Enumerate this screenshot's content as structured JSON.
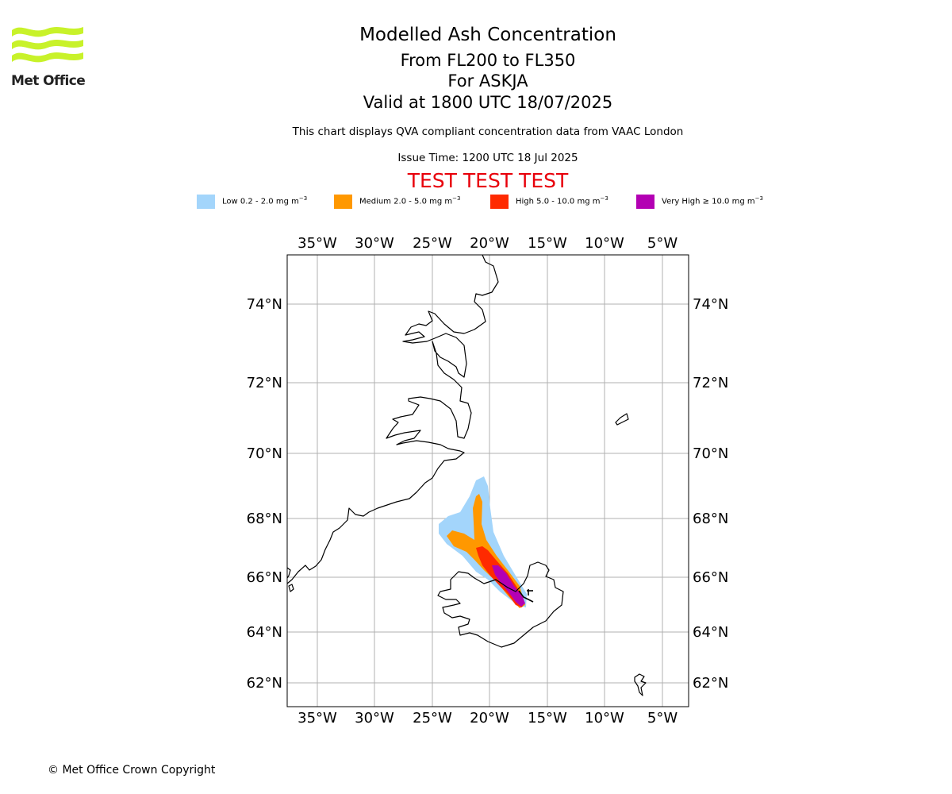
{
  "logo": {
    "text": "Met Office",
    "color": "#c8f22a"
  },
  "titles": {
    "main": "Modelled Ash Concentration",
    "levels": "From FL200 to FL350",
    "volcano": "For ASKJA",
    "valid": "Valid at 1800 UTC 18/07/2025"
  },
  "description": "This chart displays QVA compliant concentration data from VAAC London",
  "issue_time": "Issue Time: 1200 UTC 18 Jul 2025",
  "test_banner": "TEST TEST TEST",
  "legend": [
    {
      "label": "Low 0.2 - 2.0 mg m",
      "unit_sup": "−3",
      "color": "#a3d5fb"
    },
    {
      "label": "Medium 2.0 - 5.0 mg m",
      "unit_sup": "−3",
      "color": "#ff9800"
    },
    {
      "label": "High 5.0 - 10.0 mg m",
      "unit_sup": "−3",
      "color": "#ff2a00"
    },
    {
      "label": "Very High  ≥  10.0 mg m",
      "unit_sup": "−3",
      "color": "#b300b3"
    }
  ],
  "map": {
    "lon_labels": [
      "35°W",
      "30°W",
      "25°W",
      "20°W",
      "15°W",
      "10°W",
      "5°W"
    ],
    "lat_labels": [
      "74°N",
      "72°N",
      "70°N",
      "68°N",
      "66°N",
      "64°N",
      "62°N"
    ],
    "grid": true
  },
  "copyright": "© Met Office Crown Copyright"
}
